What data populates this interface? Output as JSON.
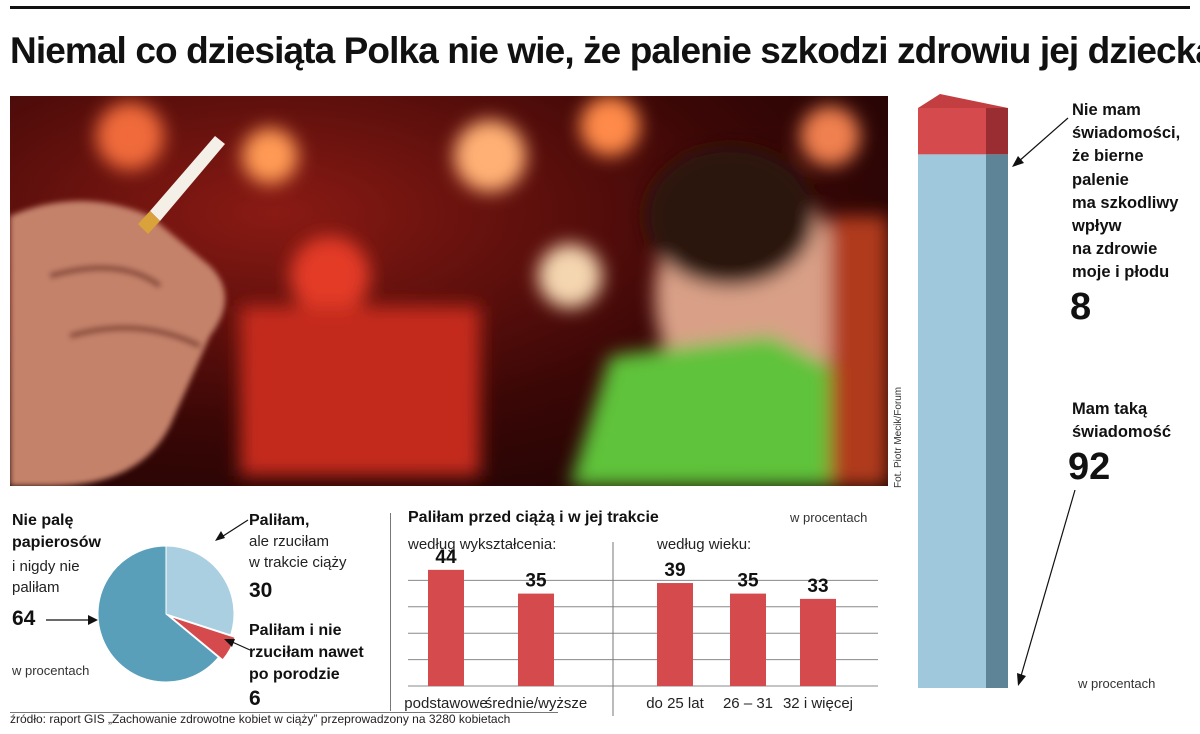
{
  "title": "Niemal co dziesiąta Polka nie wie, że palenie szkodzi zdrowiu jej dziecka",
  "photo_credit": "Fot. Piotr Mecik/Forum",
  "awareness": {
    "unit": "w procentach",
    "no_awareness": {
      "label_lines": [
        "Nie mam",
        "świadomości,",
        "że bierne",
        "palenie",
        "ma szkodliwy",
        "wpływ",
        "na zdrowie",
        "moje i płodu"
      ],
      "value": "8"
    },
    "awareness": {
      "label_lines": [
        "Mam taką",
        "świadomość"
      ],
      "value": "92"
    }
  },
  "pie": {
    "unit": "w procentach",
    "never": {
      "label_lines_bold": [
        "Nie palę",
        "papierosów"
      ],
      "label_lines": [
        "i nigdy nie",
        "paliłam"
      ],
      "value": "64"
    },
    "quit": {
      "label_bold": "Paliłam,",
      "label_lines": [
        "ale rzuciłam",
        "w trakcie ciąży"
      ],
      "value": "30"
    },
    "not_quit": {
      "label_lines_bold": [
        "Paliłam i nie",
        "rzuciłam nawet",
        "po porodzie"
      ],
      "value": "6"
    }
  },
  "bars": {
    "title": "Paliłam przed ciążą i w jej trakcie",
    "unit": "w procentach",
    "group1": "według wykształcenia:",
    "group2": "według wieku:",
    "source": "źródło: raport GIS „Zachowanie zdrowotne kobiet w ciąży” przeprowadzony na 3280 kobietach"
  },
  "colors": {
    "blue": "#9fc8dc",
    "blue_side": "#5e8497",
    "blue_pie": "#5a9fba",
    "red": "#d44a4d",
    "red_side": "#9a2d31",
    "pie_light": "#a9cfe1",
    "grid": "#888888"
  },
  "chart_data": [
    {
      "type": "bar",
      "title": "",
      "categories": [
        "Nie mam świadomości, że bierne palenie ma szkodliwy wpływ na zdrowie moje i płodu",
        "Mam taką świadomość"
      ],
      "values": [
        8,
        92
      ],
      "ylim": [
        0,
        100
      ],
      "stacked": true,
      "unit": "w procentach"
    },
    {
      "type": "pie",
      "categories": [
        "Nie palę papierosów i nigdy nie paliłam",
        "Paliłam, ale rzuciłam w trakcie ciąży",
        "Paliłam i nie rzuciłam nawet po porodzie"
      ],
      "values": [
        64,
        30,
        6
      ],
      "unit": "w procentach"
    },
    {
      "type": "bar",
      "title": "Paliłam przed ciążą i w jej trakcie",
      "groups": [
        "według wykształcenia:",
        "według wieku:"
      ],
      "categories": [
        "podstawowe",
        "średnie/wyższe",
        "do 25 lat",
        "26 – 31",
        "32 i więcej"
      ],
      "values": [
        44,
        35,
        39,
        35,
        33
      ],
      "ylim": [
        0,
        50
      ],
      "grid": true,
      "unit": "w procentach"
    }
  ]
}
